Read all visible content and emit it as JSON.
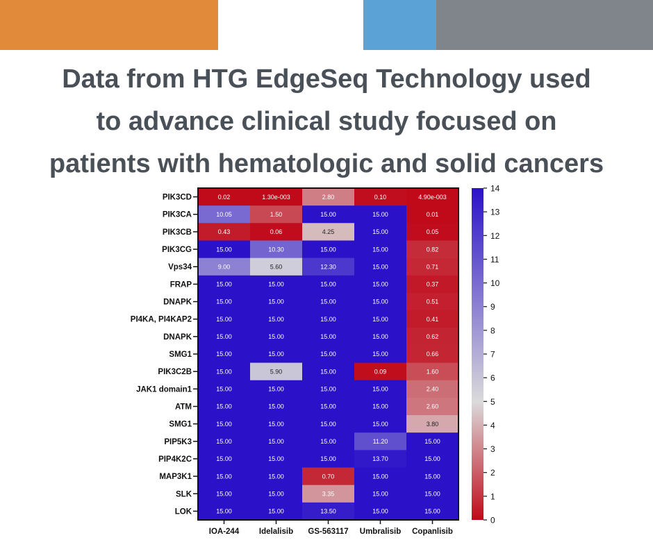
{
  "header": {
    "title_lines": [
      "Data from HTG EdgeSeq Technology used",
      "to advance clinical study focused on",
      "patients with hematologic and solid cancers"
    ]
  },
  "colors": {
    "bar_orange": "#e08a3a",
    "bar_blue": "#5ba3d6",
    "bar_gray": "#7f858b",
    "title": "#4a5058",
    "scale_low": "#c00a1a",
    "scale_mid": "#dadada",
    "scale_high": "#2b12c9"
  },
  "chart_data": {
    "type": "heatmap",
    "title": "",
    "columns": [
      "IOA-244",
      "Idelalisib",
      "GS-563117",
      "Umbralisib",
      "Copanlisib"
    ],
    "rows": [
      "PIK3CD",
      "PIK3CA",
      "PIK3CB",
      "PIK3CG",
      "Vps34",
      "FRAP",
      "DNAPK",
      "PI4KA, PI4KAP2",
      "DNAPK",
      "SMG1",
      "PIK3C2B",
      "JAK1 domain1",
      "ATM",
      "SMG1",
      "PIP5K3",
      "PIP4K2C",
      "MAP3K1",
      "SLK",
      "LOK"
    ],
    "values": [
      [
        0.02,
        0.0013,
        2.8,
        0.1,
        0.0049
      ],
      [
        10.05,
        1.5,
        15.0,
        15.0,
        0.01
      ],
      [
        0.43,
        0.06,
        4.25,
        15.0,
        0.05
      ],
      [
        15.0,
        10.3,
        15.0,
        15.0,
        0.82
      ],
      [
        9.0,
        5.6,
        12.3,
        15.0,
        0.71
      ],
      [
        15.0,
        15.0,
        15.0,
        15.0,
        0.37
      ],
      [
        15.0,
        15.0,
        15.0,
        15.0,
        0.51
      ],
      [
        15.0,
        15.0,
        15.0,
        15.0,
        0.41
      ],
      [
        15.0,
        15.0,
        15.0,
        15.0,
        0.62
      ],
      [
        15.0,
        15.0,
        15.0,
        15.0,
        0.66
      ],
      [
        15.0,
        5.9,
        15.0,
        0.09,
        1.6
      ],
      [
        15.0,
        15.0,
        15.0,
        15.0,
        2.4
      ],
      [
        15.0,
        15.0,
        15.0,
        15.0,
        2.6
      ],
      [
        15.0,
        15.0,
        15.0,
        15.0,
        3.8
      ],
      [
        15.0,
        15.0,
        15.0,
        11.2,
        15.0
      ],
      [
        15.0,
        15.0,
        15.0,
        13.7,
        15.0
      ],
      [
        15.0,
        15.0,
        0.7,
        15.0,
        15.0
      ],
      [
        15.0,
        15.0,
        3.35,
        15.0,
        15.0
      ],
      [
        15.0,
        15.0,
        13.5,
        15.0,
        15.0
      ]
    ],
    "labels": [
      [
        "0.02",
        "1.30e-003",
        "2.80",
        "0.10",
        "4.90e-003"
      ],
      [
        "10.05",
        "1.50",
        "15.00",
        "15.00",
        "0.01"
      ],
      [
        "0.43",
        "0.06",
        "4.25",
        "15.00",
        "0.05"
      ],
      [
        "15.00",
        "10.30",
        "15.00",
        "15.00",
        "0.82"
      ],
      [
        "9.00",
        "5.60",
        "12.30",
        "15.00",
        "0.71"
      ],
      [
        "15.00",
        "15.00",
        "15.00",
        "15.00",
        "0.37"
      ],
      [
        "15.00",
        "15.00",
        "15.00",
        "15.00",
        "0.51"
      ],
      [
        "15.00",
        "15.00",
        "15.00",
        "15.00",
        "0.41"
      ],
      [
        "15.00",
        "15.00",
        "15.00",
        "15.00",
        "0.62"
      ],
      [
        "15.00",
        "15.00",
        "15.00",
        "15.00",
        "0.66"
      ],
      [
        "15.00",
        "5.90",
        "15.00",
        "0.09",
        "1.60"
      ],
      [
        "15.00",
        "15.00",
        "15.00",
        "15.00",
        "2.40"
      ],
      [
        "15.00",
        "15.00",
        "15.00",
        "15.00",
        "2.60"
      ],
      [
        "15.00",
        "15.00",
        "15.00",
        "15.00",
        "3.80"
      ],
      [
        "15.00",
        "15.00",
        "15.00",
        "11.20",
        "15.00"
      ],
      [
        "15.00",
        "15.00",
        "15.00",
        "13.70",
        "15.00"
      ],
      [
        "15.00",
        "15.00",
        "0.70",
        "15.00",
        "15.00"
      ],
      [
        "15.00",
        "15.00",
        "3.35",
        "15.00",
        "15.00"
      ],
      [
        "15.00",
        "15.00",
        "13.50",
        "15.00",
        "15.00"
      ]
    ],
    "colorbar": {
      "min": 0,
      "max": 14,
      "ticks": [
        0,
        1,
        2,
        3,
        4,
        5,
        6,
        7,
        8,
        9,
        10,
        11,
        12,
        13,
        14
      ],
      "position": "right"
    }
  }
}
